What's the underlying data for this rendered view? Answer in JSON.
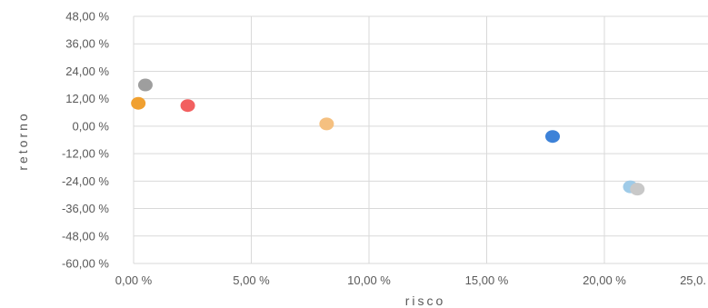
{
  "chart_data": {
    "type": "scatter",
    "xlabel": "risco",
    "ylabel": "retorno",
    "xlim": [
      0,
      25
    ],
    "ylim": [
      -60,
      48
    ],
    "x_ticks": [
      0,
      5,
      10,
      15,
      20,
      25
    ],
    "y_ticks": [
      48,
      36,
      24,
      12,
      0,
      -12,
      -24,
      -36,
      -48,
      -60
    ],
    "x_tick_labels": [
      "0,00 %",
      "5,00 %",
      "10,00 %",
      "15,00 %",
      "20,00 %",
      "25,0."
    ],
    "y_tick_labels": [
      "48,00 %",
      "36,00 %",
      "24,00 %",
      "12,00 %",
      "0,00 %",
      "-12,00 %",
      "-24,00 %",
      "-36,00 %",
      "-48,00 %",
      "-60,00 %"
    ],
    "grid": true,
    "legend": "none",
    "points": [
      {
        "x": 0.5,
        "y": 18.0,
        "color": "#9e9e9e"
      },
      {
        "x": 0.2,
        "y": 10.0,
        "color": "#f0a030"
      },
      {
        "x": 2.3,
        "y": 9.0,
        "color": "#f26060"
      },
      {
        "x": 8.2,
        "y": 1.0,
        "color": "#f5c080"
      },
      {
        "x": 17.8,
        "y": -4.5,
        "color": "#3d82d8"
      },
      {
        "x": 21.1,
        "y": -26.5,
        "color": "#9fcbe8"
      },
      {
        "x": 21.4,
        "y": -27.5,
        "color": "#c8c8c8"
      }
    ]
  }
}
